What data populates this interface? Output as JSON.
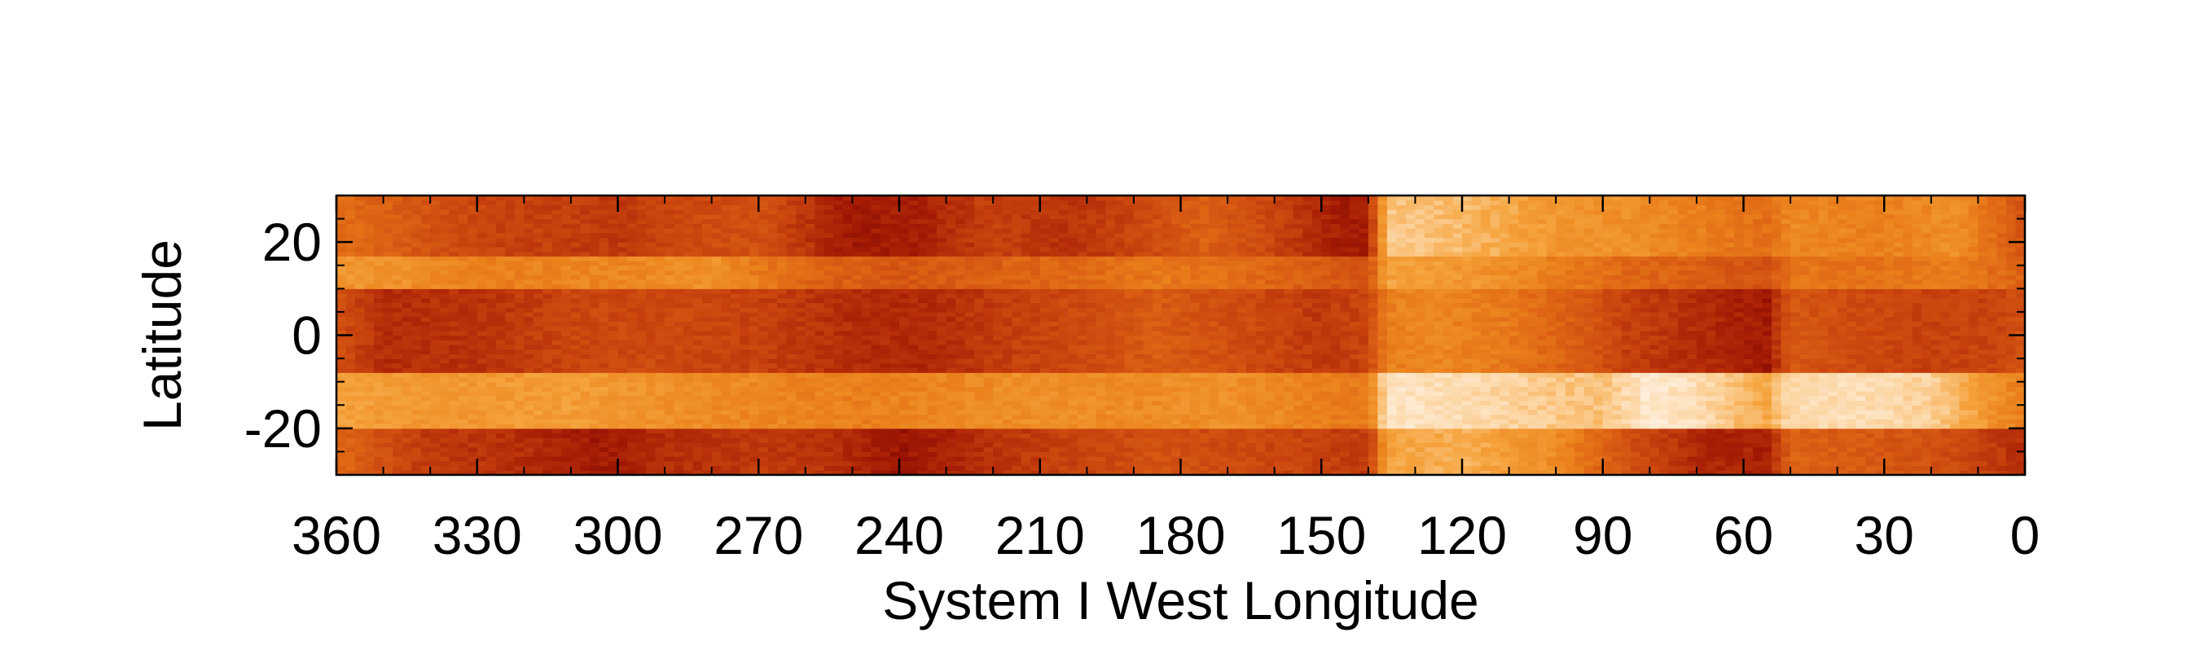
{
  "chart_data": {
    "type": "heatmap",
    "title": "",
    "xlabel": "System I West Longitude",
    "ylabel": "Latitude",
    "xlim": [
      360,
      0
    ],
    "ylim": [
      -30,
      30
    ],
    "x_ticks": [
      360,
      330,
      300,
      270,
      240,
      210,
      180,
      150,
      120,
      90,
      60,
      30,
      0
    ],
    "y_ticks": [
      20,
      0,
      -20
    ],
    "colormap": [
      "#7a0000",
      "#a81e05",
      "#c8420e",
      "#dd6214",
      "#ec851d",
      "#f6a540",
      "#fcd4a0",
      "#fff4e8"
    ],
    "grid": false,
    "latitude_bands": [
      {
        "lat_range": [
          17,
          30
        ],
        "profile": [
          [
            360,
            0.48
          ],
          [
            330,
            0.3
          ],
          [
            300,
            0.25
          ],
          [
            290,
            0.3
          ],
          [
            270,
            0.35
          ],
          [
            250,
            0.12
          ],
          [
            235,
            0.15
          ],
          [
            220,
            0.28
          ],
          [
            205,
            0.22
          ],
          [
            190,
            0.3
          ],
          [
            175,
            0.42
          ],
          [
            160,
            0.3
          ],
          [
            145,
            0.12
          ],
          [
            140,
            0.15
          ],
          [
            136,
            0.82
          ],
          [
            120,
            0.78
          ],
          [
            100,
            0.65
          ],
          [
            85,
            0.62
          ],
          [
            70,
            0.55
          ],
          [
            55,
            0.48
          ],
          [
            50,
            0.58
          ],
          [
            30,
            0.55
          ],
          [
            15,
            0.62
          ],
          [
            5,
            0.45
          ],
          [
            0,
            0.35
          ]
        ]
      },
      {
        "lat_range": [
          10,
          17
        ],
        "profile": [
          [
            360,
            0.65
          ],
          [
            345,
            0.62
          ],
          [
            330,
            0.55
          ],
          [
            300,
            0.58
          ],
          [
            280,
            0.62
          ],
          [
            260,
            0.45
          ],
          [
            240,
            0.38
          ],
          [
            220,
            0.42
          ],
          [
            200,
            0.46
          ],
          [
            185,
            0.52
          ],
          [
            170,
            0.48
          ],
          [
            150,
            0.4
          ],
          [
            140,
            0.35
          ],
          [
            136,
            0.7
          ],
          [
            120,
            0.66
          ],
          [
            100,
            0.55
          ],
          [
            85,
            0.45
          ],
          [
            70,
            0.42
          ],
          [
            55,
            0.35
          ],
          [
            50,
            0.5
          ],
          [
            30,
            0.5
          ],
          [
            15,
            0.55
          ],
          [
            0,
            0.42
          ]
        ]
      },
      {
        "lat_range": [
          -8,
          10
        ],
        "profile": [
          [
            360,
            0.35
          ],
          [
            350,
            0.2
          ],
          [
            330,
            0.22
          ],
          [
            310,
            0.3
          ],
          [
            290,
            0.32
          ],
          [
            270,
            0.28
          ],
          [
            250,
            0.2
          ],
          [
            235,
            0.18
          ],
          [
            215,
            0.28
          ],
          [
            200,
            0.32
          ],
          [
            185,
            0.4
          ],
          [
            165,
            0.32
          ],
          [
            150,
            0.25
          ],
          [
            140,
            0.3
          ],
          [
            136,
            0.55
          ],
          [
            125,
            0.58
          ],
          [
            110,
            0.52
          ],
          [
            95,
            0.4
          ],
          [
            85,
            0.28
          ],
          [
            70,
            0.2
          ],
          [
            55,
            0.12
          ],
          [
            50,
            0.38
          ],
          [
            35,
            0.32
          ],
          [
            20,
            0.28
          ],
          [
            5,
            0.3
          ],
          [
            0,
            0.35
          ]
        ]
      },
      {
        "lat_range": [
          -20,
          -8
        ],
        "profile": [
          [
            360,
            0.7
          ],
          [
            340,
            0.65
          ],
          [
            310,
            0.68
          ],
          [
            290,
            0.62
          ],
          [
            270,
            0.58
          ],
          [
            250,
            0.55
          ],
          [
            230,
            0.58
          ],
          [
            210,
            0.62
          ],
          [
            190,
            0.6
          ],
          [
            170,
            0.62
          ],
          [
            150,
            0.55
          ],
          [
            140,
            0.52
          ],
          [
            136,
            0.93
          ],
          [
            115,
            0.88
          ],
          [
            100,
            0.82
          ],
          [
            90,
            0.8
          ],
          [
            80,
            0.95
          ],
          [
            70,
            0.9
          ],
          [
            55,
            0.72
          ],
          [
            50,
            0.88
          ],
          [
            35,
            0.9
          ],
          [
            20,
            0.85
          ],
          [
            5,
            0.6
          ],
          [
            0,
            0.55
          ]
        ]
      },
      {
        "lat_range": [
          -30,
          -20
        ],
        "profile": [
          [
            360,
            0.45
          ],
          [
            340,
            0.25
          ],
          [
            320,
            0.2
          ],
          [
            305,
            0.12
          ],
          [
            290,
            0.2
          ],
          [
            270,
            0.25
          ],
          [
            255,
            0.22
          ],
          [
            240,
            0.1
          ],
          [
            220,
            0.22
          ],
          [
            200,
            0.3
          ],
          [
            185,
            0.35
          ],
          [
            165,
            0.32
          ],
          [
            150,
            0.28
          ],
          [
            140,
            0.25
          ],
          [
            136,
            0.7
          ],
          [
            120,
            0.75
          ],
          [
            100,
            0.6
          ],
          [
            85,
            0.35
          ],
          [
            70,
            0.18
          ],
          [
            55,
            0.15
          ],
          [
            50,
            0.42
          ],
          [
            35,
            0.4
          ],
          [
            20,
            0.35
          ],
          [
            5,
            0.25
          ],
          [
            0,
            0.2
          ]
        ]
      }
    ]
  }
}
